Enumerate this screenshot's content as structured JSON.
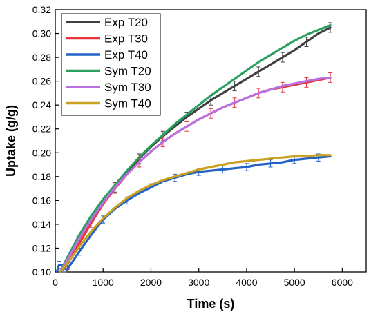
{
  "chart_data": {
    "type": "line",
    "title": "",
    "xlabel": "Time (s)",
    "ylabel": "Uptake (g/g)",
    "xlim": [
      0,
      6500
    ],
    "ylim": [
      0.1,
      0.32
    ],
    "x_ticks": [
      0,
      1000,
      2000,
      3000,
      4000,
      5000,
      6000
    ],
    "x_tick_labels": [
      "0",
      "1000",
      "2000",
      "3000",
      "4000",
      "5000",
      "6000"
    ],
    "y_ticks": [
      0.1,
      0.12,
      0.14,
      0.16,
      0.18,
      0.2,
      0.22,
      0.24,
      0.26,
      0.28,
      0.3,
      0.32
    ],
    "y_tick_labels": [
      "0.10",
      "0.12",
      "0.14",
      "0.16",
      "0.18",
      "0.20",
      "0.22",
      "0.24",
      "0.26",
      "0.28",
      "0.30",
      "0.32"
    ],
    "grid": false,
    "legend_position": "top-left",
    "series": [
      {
        "name": "Exp T20",
        "color": "#404040",
        "x": [
          100,
          250,
          500,
          750,
          1000,
          1250,
          1500,
          1750,
          2000,
          2250,
          2500,
          2750,
          3000,
          3250,
          3500,
          3750,
          4000,
          4250,
          4500,
          4750,
          5000,
          5250,
          5500,
          5750
        ],
        "y": [
          0.1,
          0.106,
          0.124,
          0.141,
          0.157,
          0.171,
          0.183,
          0.195,
          0.205,
          0.214,
          0.222,
          0.23,
          0.237,
          0.244,
          0.25,
          0.256,
          0.262,
          0.268,
          0.274,
          0.28,
          0.286,
          0.293,
          0.3,
          0.305
        ],
        "error": 0.004,
        "error_every": 2
      },
      {
        "name": "Exp T30",
        "color": "#e8333b",
        "x": [
          100,
          250,
          500,
          750,
          1000,
          1250,
          1500,
          1750,
          2000,
          2250,
          2500,
          2750,
          3000,
          3250,
          3500,
          3750,
          4000,
          4250,
          4500,
          4750,
          5000,
          5250,
          5500,
          5750
        ],
        "y": [
          0.1,
          0.106,
          0.124,
          0.141,
          0.157,
          0.17,
          0.182,
          0.192,
          0.201,
          0.209,
          0.216,
          0.222,
          0.228,
          0.233,
          0.238,
          0.242,
          0.246,
          0.25,
          0.253,
          0.255,
          0.257,
          0.259,
          0.261,
          0.263
        ],
        "error": 0.004,
        "error_every": 2
      },
      {
        "name": "Exp T40",
        "color": "#2462c5",
        "x": [
          30,
          80,
          130,
          180,
          250,
          500,
          750,
          1000,
          1250,
          1500,
          1750,
          2000,
          2250,
          2500,
          2750,
          3000,
          3250,
          3500,
          3750,
          4000,
          4250,
          4500,
          4750,
          5000,
          5250,
          5500,
          5750
        ],
        "y": [
          0.1,
          0.106,
          0.106,
          0.103,
          0.102,
          0.117,
          0.131,
          0.144,
          0.153,
          0.16,
          0.166,
          0.171,
          0.176,
          0.179,
          0.182,
          0.184,
          0.185,
          0.186,
          0.187,
          0.188,
          0.19,
          0.191,
          0.192,
          0.194,
          0.195,
          0.196,
          0.197
        ],
        "error": 0.003,
        "error_every": 2
      },
      {
        "name": "Sym T20",
        "color": "#2aa060",
        "x": [
          100,
          250,
          500,
          750,
          1000,
          1250,
          1500,
          1750,
          2000,
          2250,
          2500,
          2750,
          3000,
          3250,
          3500,
          3750,
          4000,
          4250,
          4500,
          4750,
          5000,
          5250,
          5500,
          5750
        ],
        "y": [
          0.1,
          0.112,
          0.131,
          0.147,
          0.161,
          0.173,
          0.185,
          0.196,
          0.206,
          0.215,
          0.224,
          0.232,
          0.24,
          0.248,
          0.255,
          0.262,
          0.269,
          0.276,
          0.282,
          0.288,
          0.294,
          0.299,
          0.303,
          0.307
        ]
      },
      {
        "name": "Sym T30",
        "color": "#b86fe0",
        "x": [
          100,
          250,
          500,
          750,
          1000,
          1250,
          1500,
          1750,
          2000,
          2250,
          2500,
          2750,
          3000,
          3250,
          3500,
          3750,
          4000,
          4250,
          4500,
          4750,
          5000,
          5250,
          5500,
          5750
        ],
        "y": [
          0.1,
          0.11,
          0.128,
          0.144,
          0.158,
          0.171,
          0.182,
          0.192,
          0.201,
          0.209,
          0.216,
          0.222,
          0.228,
          0.233,
          0.238,
          0.242,
          0.246,
          0.25,
          0.253,
          0.256,
          0.258,
          0.26,
          0.262,
          0.263
        ]
      },
      {
        "name": "Sym T40",
        "color": "#c9a020",
        "x": [
          100,
          250,
          500,
          750,
          1000,
          1250,
          1500,
          1750,
          2000,
          2250,
          2500,
          2750,
          3000,
          3250,
          3500,
          3750,
          4000,
          4250,
          4500,
          4750,
          5000,
          5250,
          5500,
          5750
        ],
        "y": [
          0.1,
          0.107,
          0.121,
          0.134,
          0.145,
          0.154,
          0.162,
          0.168,
          0.173,
          0.177,
          0.18,
          0.183,
          0.186,
          0.188,
          0.19,
          0.192,
          0.193,
          0.194,
          0.195,
          0.196,
          0.197,
          0.197,
          0.198,
          0.198
        ]
      }
    ]
  }
}
